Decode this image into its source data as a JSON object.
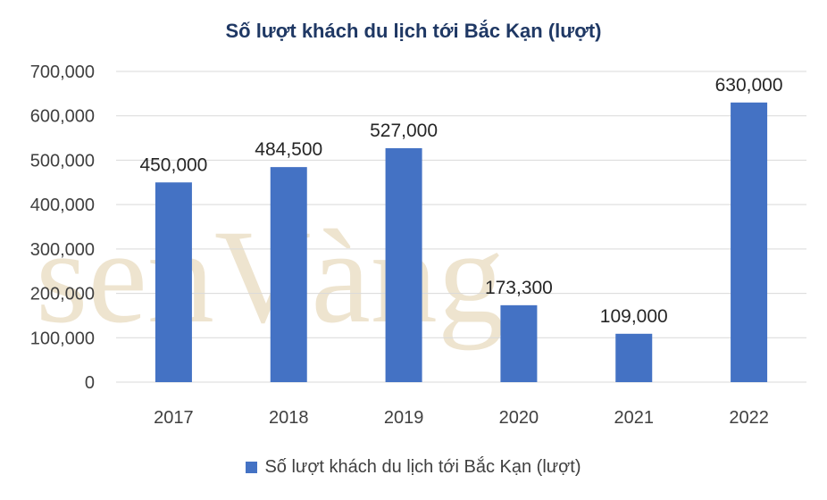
{
  "chart_data": {
    "type": "bar",
    "title": "Số lượt khách du lịch tới Bắc Kạn (lượt)",
    "categories": [
      "2017",
      "2018",
      "2019",
      "2020",
      "2021",
      "2022"
    ],
    "series": [
      {
        "name": "Số lượt khách du lịch tới Bắc Kạn (lượt)",
        "values": [
          450000,
          484500,
          527000,
          173300,
          109000,
          630000
        ],
        "data_labels": [
          "450,000",
          "484,500",
          "527,000",
          "173,300",
          "109,000",
          "630,000"
        ],
        "color": "#4472c4"
      }
    ],
    "ylim": [
      0,
      700000
    ],
    "yticks": [
      0,
      100000,
      200000,
      300000,
      400000,
      500000,
      600000,
      700000
    ],
    "ytick_labels": [
      "0",
      "100,000",
      "200,000",
      "300,000",
      "400,000",
      "500,000",
      "600,000",
      "700,000"
    ],
    "grid": true,
    "legend_position": "bottom",
    "gridline_color": "#d9d9d9"
  },
  "watermark": {
    "text": "senVàng"
  }
}
